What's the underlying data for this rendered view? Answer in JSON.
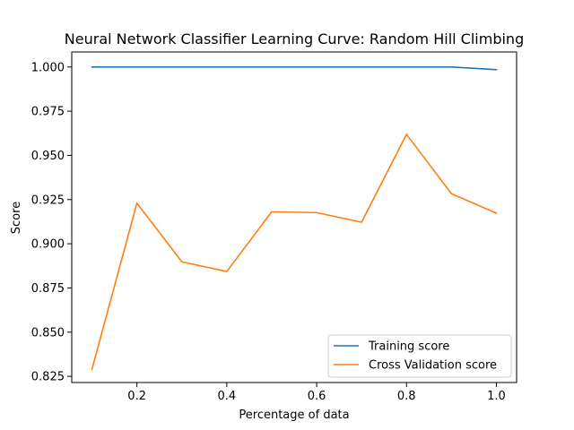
{
  "chart_data": {
    "type": "line",
    "title": "Neural Network Classifier Learning Curve: Random Hill Climbing",
    "xlabel": "Percentage of data",
    "ylabel": "Score",
    "xlim": [
      0.055,
      1.045
    ],
    "ylim": [
      0.8215,
      1.0085
    ],
    "xticks": [
      0.2,
      0.4,
      0.6,
      0.8,
      1.0
    ],
    "xtick_labels": [
      "0.2",
      "0.4",
      "0.6",
      "0.8",
      "1.0"
    ],
    "yticks": [
      0.825,
      0.85,
      0.875,
      0.9,
      0.925,
      0.95,
      0.975,
      1.0
    ],
    "ytick_labels": [
      "0.825",
      "0.850",
      "0.875",
      "0.900",
      "0.925",
      "0.950",
      "0.975",
      "1.000"
    ],
    "x": [
      0.1,
      0.2,
      0.3,
      0.4,
      0.5,
      0.6,
      0.7,
      0.8,
      0.9,
      1.0
    ],
    "series": [
      {
        "name": "Training score",
        "color": "#1f77b4",
        "values": [
          1.0,
          1.0,
          1.0,
          1.0,
          1.0,
          1.0,
          1.0,
          1.0,
          1.0,
          0.9985
        ]
      },
      {
        "name": "Cross Validation score",
        "color": "#ff7f0e",
        "values": [
          0.829,
          0.923,
          0.8898,
          0.8843,
          0.9181,
          0.9176,
          0.9122,
          0.9619,
          0.9283,
          0.9173
        ]
      }
    ],
    "grid": false,
    "legend_position": "lower-right"
  }
}
